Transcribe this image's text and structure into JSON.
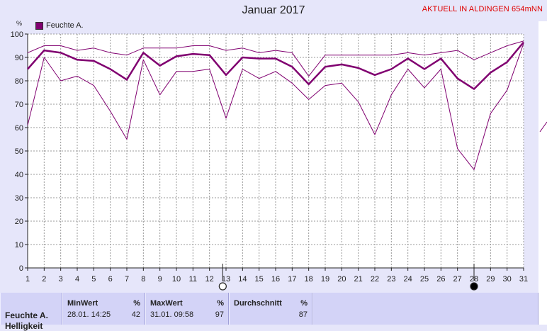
{
  "title": "Januar 2017",
  "station": "AKTUELL IN ALDINGEN 654mNN",
  "legend_label": "Feuchte A.",
  "y_unit": "%",
  "colors": {
    "series": "#800070",
    "background": "#e6e6fa",
    "station": "#e00000"
  },
  "chart_data": {
    "type": "line",
    "title": "Januar 2017",
    "ylabel": "%",
    "ylim": [
      0,
      100
    ],
    "yticks": [
      0,
      10,
      20,
      30,
      40,
      50,
      60,
      70,
      80,
      90,
      100
    ],
    "x": [
      1,
      2,
      3,
      4,
      5,
      6,
      7,
      8,
      9,
      10,
      11,
      12,
      13,
      14,
      15,
      16,
      17,
      18,
      19,
      20,
      21,
      22,
      23,
      24,
      25,
      26,
      27,
      28,
      29,
      30,
      31
    ],
    "grid": true,
    "legend": "top-left",
    "series": [
      {
        "name": "Feuchte A.",
        "role": "max",
        "values": [
          92,
          95,
          95,
          93,
          94,
          92,
          91,
          94,
          94,
          94,
          95,
          95,
          93,
          94,
          92,
          93,
          92,
          82,
          91,
          91,
          91,
          91,
          91,
          92,
          91,
          92,
          93,
          89,
          92,
          95,
          97
        ]
      },
      {
        "name": "Feuchte A.",
        "role": "avg",
        "values": [
          85,
          93,
          92,
          89,
          88.5,
          85,
          80.5,
          92,
          86.5,
          90.5,
          91.5,
          91,
          82.5,
          90,
          89.5,
          89.5,
          86,
          78.5,
          86,
          87,
          85.5,
          82.5,
          85,
          89.5,
          85,
          89.5,
          81,
          76.5,
          83.5,
          88,
          96.5
        ]
      },
      {
        "name": "Feuchte A.",
        "role": "min",
        "values": [
          61,
          90,
          80,
          82,
          78,
          67,
          55,
          89,
          74,
          84,
          84,
          85,
          64,
          85,
          81,
          84,
          79,
          72,
          78,
          79,
          71,
          57,
          74,
          85,
          77,
          85,
          51,
          42,
          66,
          76,
          96
        ]
      }
    ]
  },
  "markers": {
    "new_moon_day": 28,
    "full_moon_day": 12.8
  },
  "table": {
    "row_label": "Feuchte A.",
    "row_label_2": "Helligkeit",
    "min": {
      "header": "MinWert",
      "unit": "%",
      "time": "28.01.  14:25",
      "value": "42"
    },
    "max": {
      "header": "MaxWert",
      "unit": "%",
      "time": "31.01.  09:58",
      "value": "97"
    },
    "avg": {
      "header": "Durchschnitt",
      "unit": "%",
      "value": "87"
    }
  }
}
